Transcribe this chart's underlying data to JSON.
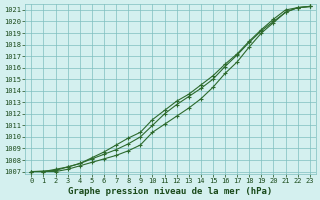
{
  "xlabel": "Graphe pression niveau de la mer (hPa)",
  "xlim": [
    -0.5,
    23.5
  ],
  "ylim": [
    1006.8,
    1021.5
  ],
  "yticks": [
    1007,
    1008,
    1009,
    1010,
    1011,
    1012,
    1013,
    1014,
    1015,
    1016,
    1017,
    1018,
    1019,
    1020,
    1021
  ],
  "xticks": [
    0,
    1,
    2,
    3,
    4,
    5,
    6,
    7,
    8,
    9,
    10,
    11,
    12,
    13,
    14,
    15,
    16,
    17,
    18,
    19,
    20,
    21,
    22,
    23
  ],
  "line1_x": [
    0,
    1,
    2,
    3,
    4,
    5,
    6,
    7,
    8,
    9,
    10,
    11,
    12,
    13,
    14,
    15,
    16,
    17,
    18,
    19,
    20,
    21,
    22,
    23
  ],
  "line1_y": [
    1007.0,
    1007.0,
    1007.2,
    1007.4,
    1007.7,
    1008.1,
    1008.5,
    1008.9,
    1009.4,
    1010.0,
    1011.0,
    1012.0,
    1012.8,
    1013.5,
    1014.2,
    1015.0,
    1016.1,
    1017.1,
    1018.2,
    1019.2,
    1020.0,
    1020.8,
    1021.2,
    1021.3
  ],
  "line2_x": [
    0,
    2,
    3,
    4,
    5,
    6,
    7,
    8,
    9,
    10,
    11,
    12,
    13,
    14,
    15,
    16,
    17,
    18,
    19,
    20,
    21,
    22,
    23
  ],
  "line2_y": [
    1007.0,
    1007.1,
    1007.4,
    1007.7,
    1008.2,
    1008.7,
    1009.3,
    1009.9,
    1010.4,
    1011.5,
    1012.3,
    1013.1,
    1013.7,
    1014.5,
    1015.3,
    1016.3,
    1017.2,
    1018.3,
    1019.3,
    1020.2,
    1021.0,
    1021.2,
    1021.3
  ],
  "line3_x": [
    0,
    1,
    2,
    3,
    4,
    5,
    6,
    7,
    8,
    9,
    10,
    11,
    12,
    13,
    14,
    15,
    16,
    17,
    18,
    19,
    20,
    21,
    22,
    23
  ],
  "line3_y": [
    1007.0,
    1007.0,
    1007.0,
    1007.2,
    1007.5,
    1007.8,
    1008.1,
    1008.4,
    1008.8,
    1009.3,
    1010.4,
    1011.1,
    1011.8,
    1012.5,
    1013.3,
    1014.3,
    1015.5,
    1016.5,
    1017.8,
    1019.0,
    1019.9,
    1020.8,
    1021.2,
    1021.3
  ],
  "line_color": "#2d6a2d",
  "bg_color": "#d4f0ef",
  "grid_color": "#7fbfbf",
  "axis_label_color": "#1a4a1a",
  "marker": "+",
  "marker_size": 3.5,
  "linewidth": 0.8,
  "tick_fontsize": 5.0,
  "xlabel_fontsize": 6.5,
  "xlabel_bold": true
}
